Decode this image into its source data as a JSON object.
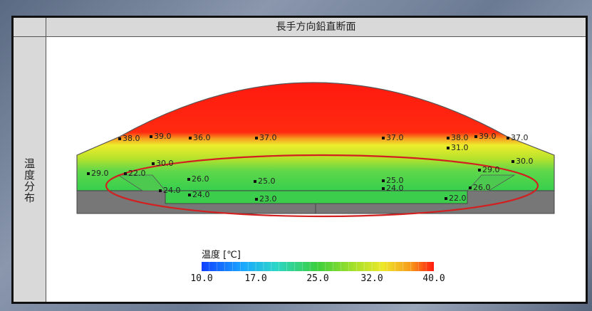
{
  "header": {
    "title": "長手方向鉛直断面"
  },
  "side": {
    "label": "温度分布"
  },
  "colors": {
    "hot": "#ff1a0f",
    "warm": "#e8e82a",
    "mild": "#a8df2a",
    "cool": "#40d24a",
    "floor": "#7a7a7a",
    "highlight_ellipse": "#d21f1f"
  },
  "points": [
    {
      "label": "38.0"
    },
    {
      "label": "39.0"
    },
    {
      "label": "36.0"
    },
    {
      "label": "37.0"
    },
    {
      "label": "37.0"
    },
    {
      "label": "38.0"
    },
    {
      "label": "39.0"
    },
    {
      "label": "37.0"
    },
    {
      "label": "31.0"
    },
    {
      "label": "30.0"
    },
    {
      "label": "30.0"
    },
    {
      "label": "29.0"
    },
    {
      "label": "22.0"
    },
    {
      "label": "29.0"
    },
    {
      "label": "26.0"
    },
    {
      "label": "25.0"
    },
    {
      "label": "25.0"
    },
    {
      "label": "24.0"
    },
    {
      "label": "24.0"
    },
    {
      "label": "24.0"
    },
    {
      "label": "26.0"
    },
    {
      "label": "23.0"
    },
    {
      "label": "22.0"
    }
  ],
  "legend": {
    "title": "温度 [℃]",
    "ticks": [
      "10.0",
      "17.0",
      "25.0",
      "32.0",
      "40.0"
    ],
    "range": [
      10,
      40
    ]
  }
}
